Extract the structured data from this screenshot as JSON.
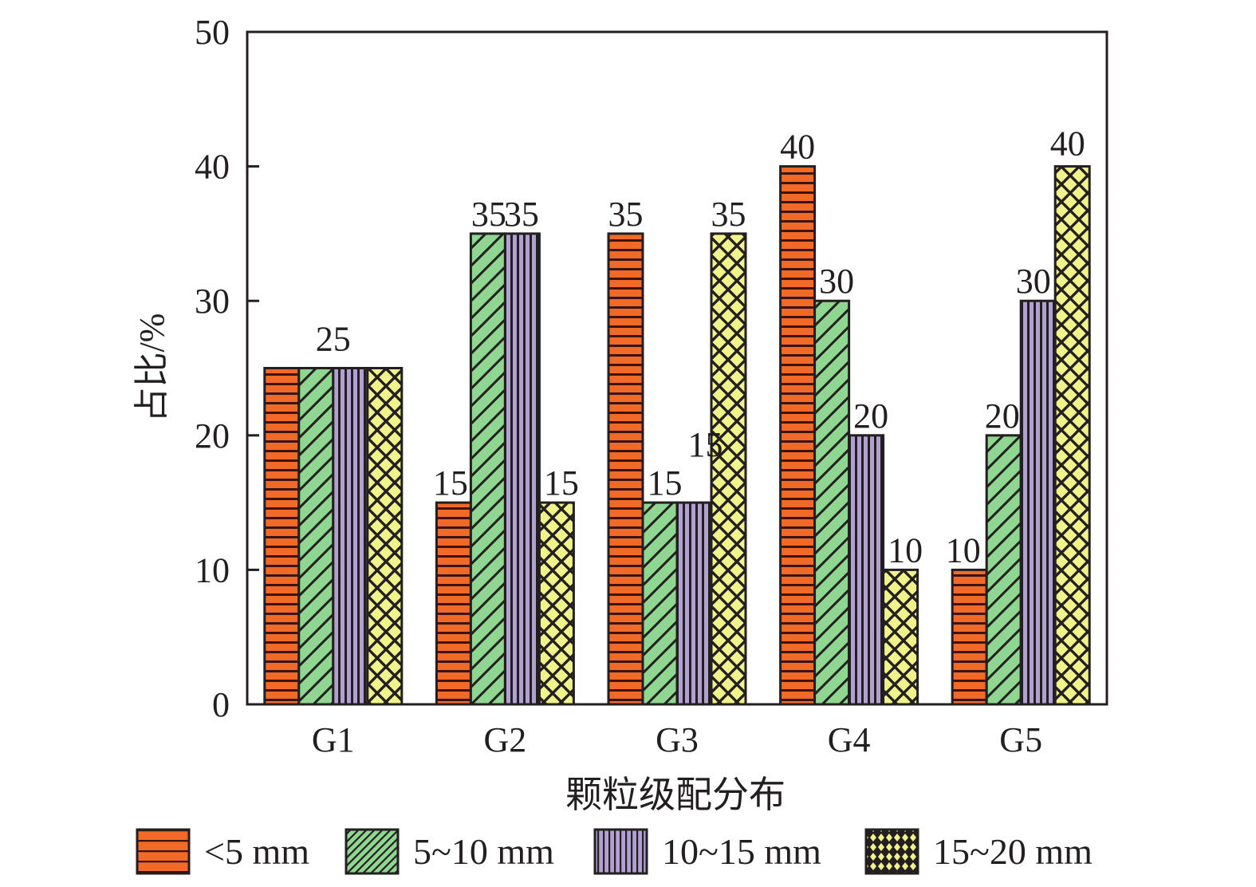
{
  "chart_data": {
    "type": "bar",
    "title": "",
    "xlabel": "颗粒级配分布",
    "ylabel": "占比/%",
    "ylim": [
      0,
      50
    ],
    "yticks": [
      0,
      10,
      20,
      30,
      40,
      50
    ],
    "categories": [
      "G1",
      "G2",
      "G3",
      "G4",
      "G5"
    ],
    "series": [
      {
        "name": "<5 mm",
        "values": [
          25,
          15,
          35,
          40,
          10
        ],
        "color": "#f26a27",
        "pattern": "horizontal-lines"
      },
      {
        "name": "5~10 mm",
        "values": [
          25,
          35,
          15,
          30,
          20
        ],
        "color": "#8fd691",
        "pattern": "diagonal-lines"
      },
      {
        "name": "10~15 mm",
        "values": [
          25,
          35,
          15,
          20,
          30
        ],
        "color": "#b3a0d3",
        "pattern": "vertical-lines"
      },
      {
        "name": "15~20 mm",
        "values": [
          25,
          15,
          35,
          10,
          40
        ],
        "color": "#f0f28a",
        "pattern": "crosshatch"
      }
    ],
    "data_labels": [
      {
        "group": "G1",
        "text": "25"
      },
      {
        "group": "G2",
        "series": 0,
        "text": "15"
      },
      {
        "group": "G2",
        "series": 1,
        "text": "35"
      },
      {
        "group": "G2",
        "series": 2,
        "text": "35"
      },
      {
        "group": "G2",
        "series": 3,
        "text": "15"
      },
      {
        "group": "G3",
        "series": 0,
        "text": "35"
      },
      {
        "group": "G3",
        "series": 1,
        "text": "15"
      },
      {
        "group": "G3",
        "series": 2,
        "text": "15"
      },
      {
        "group": "G3",
        "series": 3,
        "text": "35"
      },
      {
        "group": "G4",
        "series": 0,
        "text": "40"
      },
      {
        "group": "G4",
        "series": 1,
        "text": "30"
      },
      {
        "group": "G4",
        "series": 2,
        "text": "20"
      },
      {
        "group": "G4",
        "series": 3,
        "text": "10"
      },
      {
        "group": "G5",
        "series": 0,
        "text": "10"
      },
      {
        "group": "G5",
        "series": 1,
        "text": "20"
      },
      {
        "group": "G5",
        "series": 2,
        "text": "30"
      },
      {
        "group": "G5",
        "series": 3,
        "text": "40"
      }
    ],
    "grid": false,
    "legend_position": "bottom"
  }
}
